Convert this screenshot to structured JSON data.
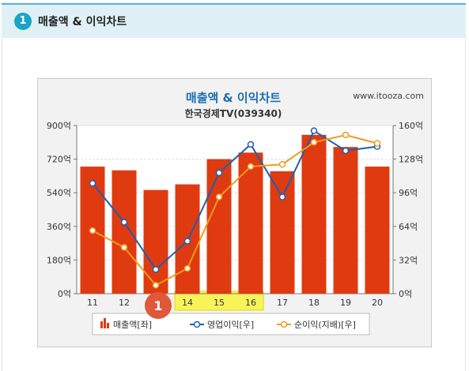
{
  "panel": {
    "number": "1",
    "title": "매출액 & 이익차트"
  },
  "chart_data": {
    "type": "bar",
    "title": "매출액 & 이익차트",
    "subtitle": "한국경제TV(039340)",
    "watermark": "www.itooza.com",
    "categories": [
      "11",
      "12",
      "13",
      "14",
      "15",
      "16",
      "17",
      "18",
      "19",
      "20"
    ],
    "series": [
      {
        "name": "매출액[좌]",
        "type": "bar",
        "axis": "left",
        "color": "#e03a10",
        "values": [
          680,
          660,
          555,
          585,
          720,
          755,
          655,
          850,
          785,
          680
        ]
      },
      {
        "name": "영업이익[우]",
        "type": "line",
        "axis": "right",
        "color": "#1f5fb0",
        "values": [
          105,
          68,
          23,
          50,
          115,
          142,
          92,
          155,
          136,
          140
        ]
      },
      {
        "name": "순이익(지배)[우]",
        "type": "line",
        "axis": "right",
        "color": "#f39a1c",
        "values": [
          60,
          44,
          8,
          24,
          92,
          121,
          123,
          144,
          151,
          143
        ]
      }
    ],
    "y_left": {
      "min": 0,
      "max": 900,
      "ticks": [
        "0억",
        "180억",
        "360억",
        "540억",
        "720억",
        "900억"
      ]
    },
    "y_right": {
      "min": 0,
      "max": 160,
      "ticks": [
        "0억",
        "32억",
        "64억",
        "96억",
        "128억",
        "160억"
      ]
    },
    "highlighted_categories": [
      "14",
      "15",
      "16"
    ],
    "highlight_color": "#f7f35a",
    "annotation": {
      "label": "1",
      "color": "#e0583a"
    },
    "legend_position": "bottom",
    "grid": true
  }
}
